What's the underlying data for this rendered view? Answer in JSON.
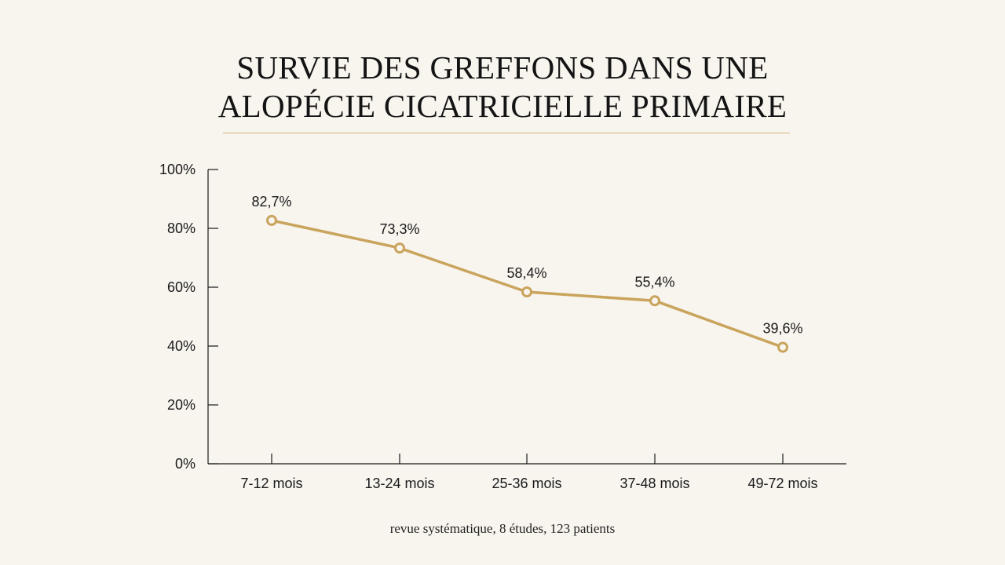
{
  "title_lines": [
    "SURVIE DES GREFFONS DANS UNE",
    "ALOPÉCIE CICATRICIELLE PRIMAIRE"
  ],
  "caption": "revue systématique, 8 études, 123 patients",
  "colors": {
    "background": "#f8f4ee",
    "line": "#c9a45c",
    "rule": "#d2b47a",
    "axis": "#1a1a1a"
  },
  "chart_data": {
    "type": "line",
    "title": "SURVIE DES GREFFONS DANS UNE ALOPÉCIE CICATRICIELLE PRIMAIRE",
    "categories": [
      "7-12 mois",
      "13-24 mois",
      "25-36 mois",
      "37-48 mois",
      "49-72 mois"
    ],
    "values": [
      82.7,
      73.3,
      58.4,
      55.4,
      39.6
    ],
    "data_labels": [
      "82,7%",
      "73,3%",
      "58,4%",
      "55,4%",
      "39,6%"
    ],
    "y_ticks": [
      0,
      20,
      40,
      60,
      80,
      100
    ],
    "y_tick_labels": [
      "0%",
      "20%",
      "40%",
      "60%",
      "80%",
      "100%"
    ],
    "ylim": [
      0,
      100
    ],
    "xlabel": "",
    "ylabel": "",
    "grid": false,
    "legend": "none"
  }
}
